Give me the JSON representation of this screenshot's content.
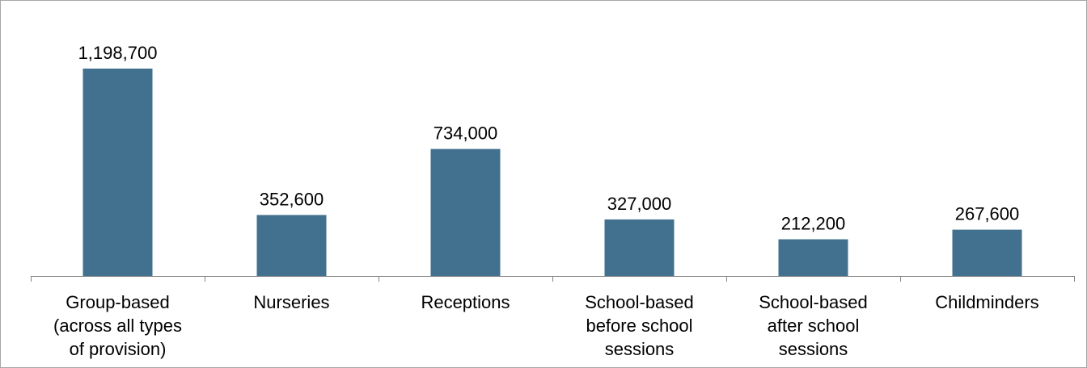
{
  "chart_data": {
    "type": "bar",
    "title": "",
    "xlabel": "",
    "ylabel": "",
    "ylim": [
      0,
      1300000
    ],
    "grid": false,
    "legend": "none",
    "categories": [
      [
        "Group-based",
        "(across all types",
        "of provision)"
      ],
      [
        "Nurseries"
      ],
      [
        "Receptions"
      ],
      [
        "School-based",
        "before school",
        "sessions"
      ],
      [
        "School-based",
        "after school",
        "sessions"
      ],
      [
        "Childminders"
      ]
    ],
    "values": [
      1198700,
      352600,
      734000,
      327000,
      212200,
      267600
    ],
    "value_labels": [
      "1,198,700",
      "352,600",
      "734,000",
      "327,000",
      "212,200",
      "267,600"
    ],
    "bar_color": "#41718F",
    "axis_color": "#868686"
  }
}
